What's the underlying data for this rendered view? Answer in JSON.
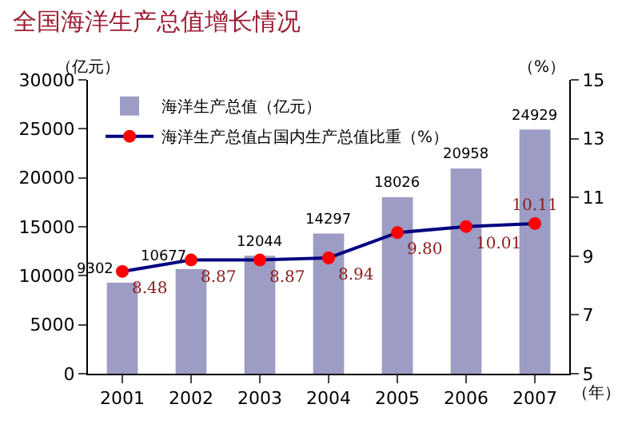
{
  "chart_data": {
    "type": "bar",
    "title": "全国海洋生产总值增长情况",
    "ylabel": "（亿元）",
    "y2label": "（%）",
    "xlabel": "（年）",
    "categories": [
      "2001",
      "2002",
      "2003",
      "2004",
      "2005",
      "2006",
      "2007"
    ],
    "series": [
      {
        "name": "海洋生产总值（亿元）",
        "color": "#9c9cc4",
        "values": [
          9302,
          10677,
          12044,
          14297,
          18026,
          20958,
          24929
        ],
        "value_labels": [
          "9302",
          "10677",
          "12044",
          "14297",
          "18026",
          "20958",
          "24929"
        ]
      },
      {
        "name": "海洋生产总值占国内生产总值比重（%）",
        "type": "line",
        "axis": "y2",
        "color": "#000080",
        "colors": [
          "#ff0000",
          "#ff0000",
          "#ff0000",
          "#ff0000",
          "#ff0000",
          "#ff0000",
          "#ff0000"
        ],
        "marker": "circle",
        "values": [
          8.48,
          8.87,
          8.87,
          8.94,
          9.8,
          10.01,
          10.11
        ],
        "value_labels": [
          "8.48",
          "8.87",
          "8.87",
          "8.94",
          "9.80",
          "10.01",
          "10.11"
        ]
      }
    ],
    "ylim": [
      0,
      30000
    ],
    "yticks": [
      0,
      5000,
      10000,
      15000,
      20000,
      25000,
      30000
    ],
    "y2lim": [
      5,
      15
    ],
    "y2ticks": [
      5,
      7,
      9,
      11,
      13,
      15
    ],
    "legend": "top left"
  }
}
